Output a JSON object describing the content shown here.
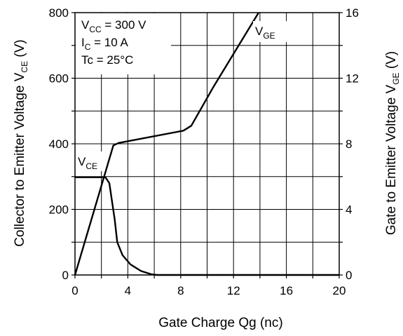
{
  "chart_data": {
    "type": "line",
    "title": "",
    "xlabel": "Gate Charge    Qg  (nc)",
    "ylabel_left": {
      "main": "Collector to Emitter Voltage   V",
      "sub": "CE",
      "unit": "  (V)"
    },
    "ylabel_right": {
      "main": "Gate to Emitter Voltage   V",
      "sub": "GE",
      "unit": "  (V)"
    },
    "xlim": [
      0,
      20
    ],
    "ylim_left": [
      0,
      800
    ],
    "ylim_right": [
      0,
      16
    ],
    "x_ticks": [
      "0",
      "4",
      "8",
      "12",
      "16",
      "20"
    ],
    "y_ticks_left": [
      "0",
      "200",
      "400",
      "600",
      "800"
    ],
    "y_ticks_right": [
      "0",
      "4",
      "8",
      "12",
      "16"
    ],
    "grid": true,
    "conditions": [
      {
        "main": "V",
        "sub": "CC",
        "rest": " = 300 V"
      },
      {
        "main": "I",
        "sub": "C",
        "rest": " = 10 A"
      },
      {
        "main": "Tc = 25°C",
        "sub": "",
        "rest": ""
      }
    ],
    "series": [
      {
        "name": {
          "main": "V",
          "sub": "GE"
        },
        "axis": "right",
        "x": [
          0,
          2.9,
          3.3,
          8.2,
          8.8,
          10.5,
          13.9
        ],
        "y": [
          0,
          7.9,
          8.05,
          8.8,
          9.1,
          11.5,
          16
        ]
      },
      {
        "name": {
          "main": "V",
          "sub": "CE"
        },
        "axis": "left",
        "x": [
          0,
          2.3,
          2.6,
          3.0,
          3.2,
          3.6,
          4.2,
          5.0,
          5.8,
          6.2,
          20
        ],
        "y": [
          298,
          298,
          280,
          170,
          100,
          60,
          32,
          12,
          2,
          0,
          0
        ]
      }
    ]
  }
}
